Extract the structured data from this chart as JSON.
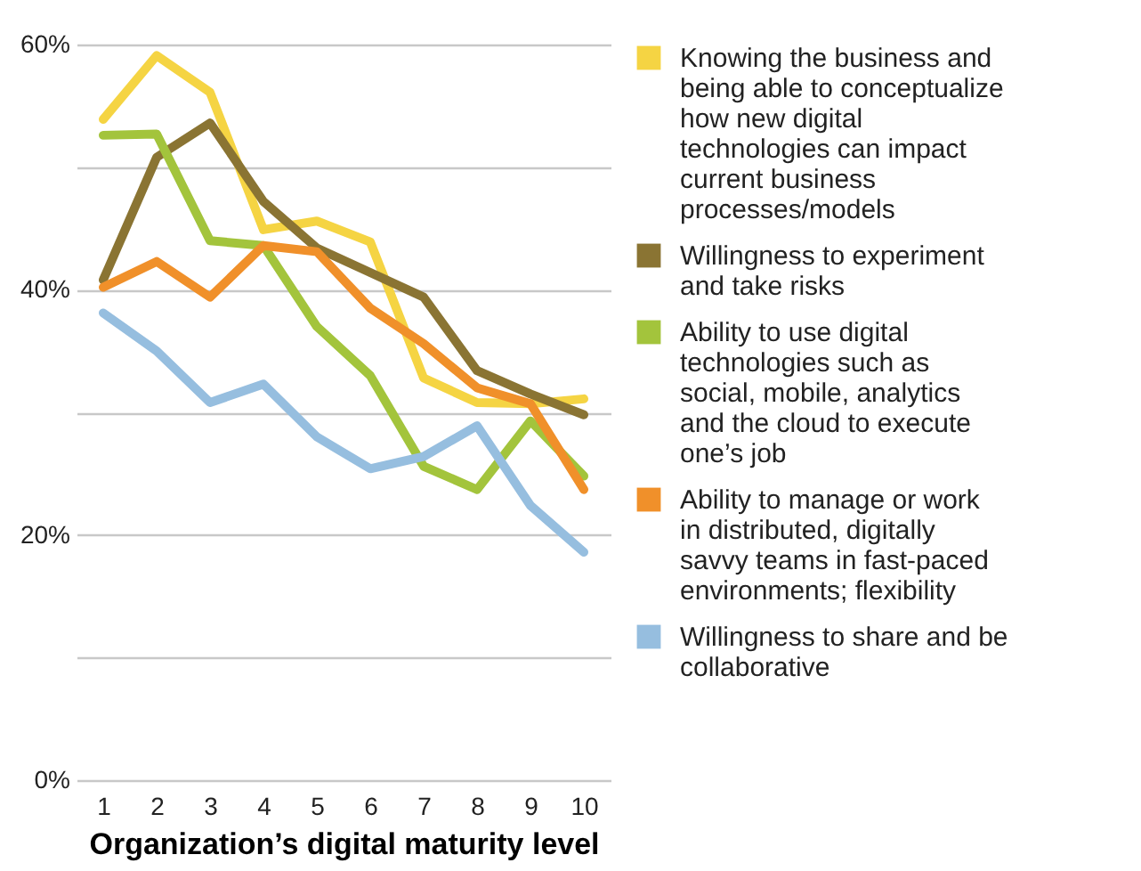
{
  "chart_data": {
    "type": "line",
    "xlabel": "Organization’s digital maturity level",
    "categories": [
      "1",
      "2",
      "3",
      "4",
      "5",
      "6",
      "7",
      "8",
      "9",
      "10"
    ],
    "ylim": [
      0,
      60
    ],
    "yticks": [
      {
        "value": 0,
        "label": "0%"
      },
      {
        "value": 10,
        "label": null
      },
      {
        "value": 20,
        "label": "20%"
      },
      {
        "value": 30,
        "label": null
      },
      {
        "value": 40,
        "label": "40%"
      },
      {
        "value": 50,
        "label": null
      },
      {
        "value": 60,
        "label": "60%"
      }
    ],
    "grid": "y",
    "legend": "right",
    "marker": "none",
    "line_style": "solid",
    "series": [
      {
        "name": "Knowing the business and being able to conceptualize how new digital technologies can impact current business processes/models",
        "color": "#f5d443",
        "values": [
          53.9,
          59.1,
          56.1,
          44.9,
          45.6,
          43.9,
          32.8,
          30.8,
          30.7,
          31.1
        ]
      },
      {
        "name": "Willingness to experiment and take risks",
        "color": "#8a7433",
        "values": [
          40.8,
          50.8,
          53.6,
          47.2,
          43.4,
          41.4,
          39.4,
          33.4,
          31.5,
          29.8
        ]
      },
      {
        "name": "Ability to use digital technologies such as social, mobile, analytics and the cloud to execute one’s job",
        "color": "#a3c43c",
        "values": [
          52.6,
          52.7,
          44.0,
          43.6,
          37.0,
          33.0,
          25.6,
          23.7,
          29.3,
          24.8
        ]
      },
      {
        "name": "Ability to manage or work in distributed, digitally savvy teams in fast-paced environments; flexibility",
        "color": "#f0902a",
        "values": [
          40.2,
          42.3,
          39.4,
          43.6,
          43.1,
          38.5,
          35.6,
          32.0,
          30.7,
          23.7
        ]
      },
      {
        "name": "Willingness to share and be collaborative",
        "color": "#96bedf",
        "values": [
          38.1,
          35.0,
          30.8,
          32.3,
          28.0,
          25.4,
          26.4,
          28.9,
          22.4,
          18.6
        ]
      }
    ]
  }
}
